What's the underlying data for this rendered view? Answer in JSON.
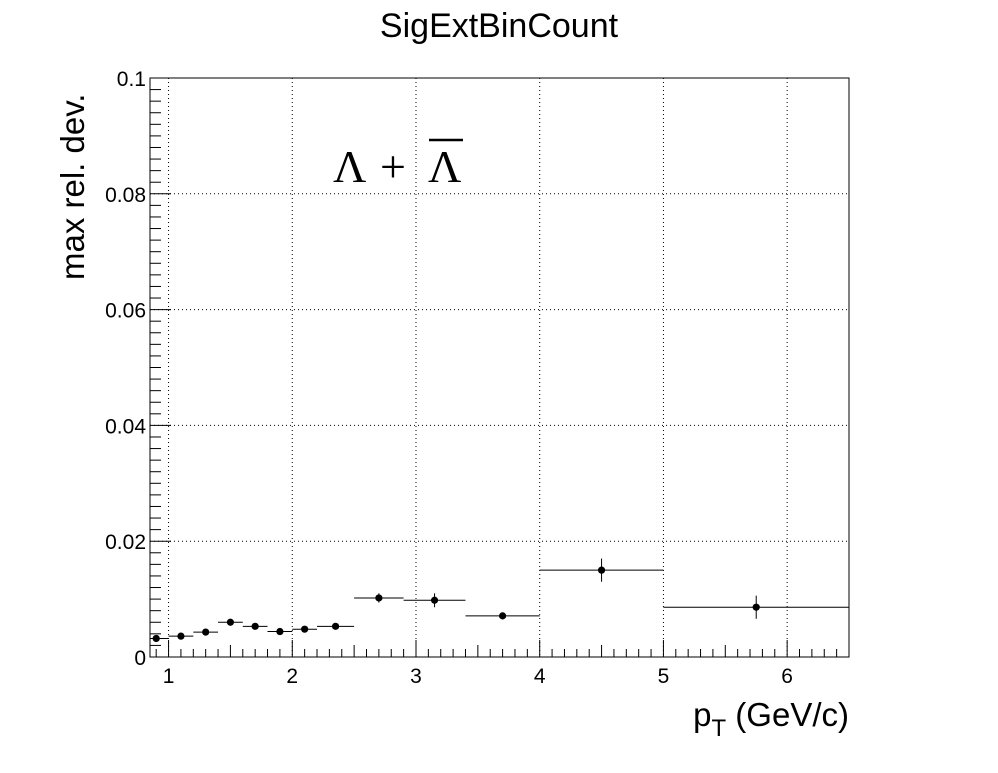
{
  "chart_data": {
    "type": "scatter",
    "title": "SigExtBinCount",
    "xlabel_main": "p",
    "xlabel_sub": "T",
    "xlabel_unit": " (GeV/c)",
    "ylabel": "max rel. dev.",
    "xlim": [
      0.85,
      6.5
    ],
    "ylim": [
      0,
      0.1
    ],
    "grid": true,
    "annotation": {
      "lambda": "Λ",
      "plus": "+",
      "antilambda": "Λ"
    },
    "x_ticks": [
      {
        "value": 1,
        "label": "1"
      },
      {
        "value": 2,
        "label": "2"
      },
      {
        "value": 3,
        "label": "3"
      },
      {
        "value": 4,
        "label": "4"
      },
      {
        "value": 5,
        "label": "5"
      },
      {
        "value": 6,
        "label": "6"
      }
    ],
    "y_ticks": [
      {
        "value": 0,
        "label": "0"
      },
      {
        "value": 0.02,
        "label": "0.02"
      },
      {
        "value": 0.04,
        "label": "0.04"
      },
      {
        "value": 0.06,
        "label": "0.06"
      },
      {
        "value": 0.08,
        "label": "0.08"
      },
      {
        "value": 0.1,
        "label": "0.1"
      }
    ],
    "points": [
      {
        "x": 0.9,
        "xlo": 0.8,
        "xhi": 1.0,
        "y": 0.0032,
        "yerr": 0.0004
      },
      {
        "x": 1.1,
        "xlo": 1.0,
        "xhi": 1.2,
        "y": 0.0036,
        "yerr": 0.0004
      },
      {
        "x": 1.3,
        "xlo": 1.2,
        "xhi": 1.4,
        "y": 0.0043,
        "yerr": 0.0004
      },
      {
        "x": 1.5,
        "xlo": 1.4,
        "xhi": 1.6,
        "y": 0.006,
        "yerr": 0.0004
      },
      {
        "x": 1.7,
        "xlo": 1.6,
        "xhi": 1.8,
        "y": 0.0053,
        "yerr": 0.0004
      },
      {
        "x": 1.9,
        "xlo": 1.8,
        "xhi": 2.0,
        "y": 0.0044,
        "yerr": 0.0004
      },
      {
        "x": 2.1,
        "xlo": 2.0,
        "xhi": 2.2,
        "y": 0.0048,
        "yerr": 0.0005
      },
      {
        "x": 2.35,
        "xlo": 2.2,
        "xhi": 2.5,
        "y": 0.0053,
        "yerr": 0.0004
      },
      {
        "x": 2.7,
        "xlo": 2.5,
        "xhi": 2.9,
        "y": 0.0102,
        "yerr": 0.0008
      },
      {
        "x": 3.15,
        "xlo": 2.9,
        "xhi": 3.4,
        "y": 0.0098,
        "yerr": 0.0012
      },
      {
        "x": 3.7,
        "xlo": 3.4,
        "xhi": 4.0,
        "y": 0.0071,
        "yerr": 0.0006
      },
      {
        "x": 4.5,
        "xlo": 4.0,
        "xhi": 5.0,
        "y": 0.015,
        "yerr": 0.002
      },
      {
        "x": 5.75,
        "xlo": 5.0,
        "xhi": 6.5,
        "y": 0.0086,
        "yerr": 0.002
      }
    ]
  }
}
